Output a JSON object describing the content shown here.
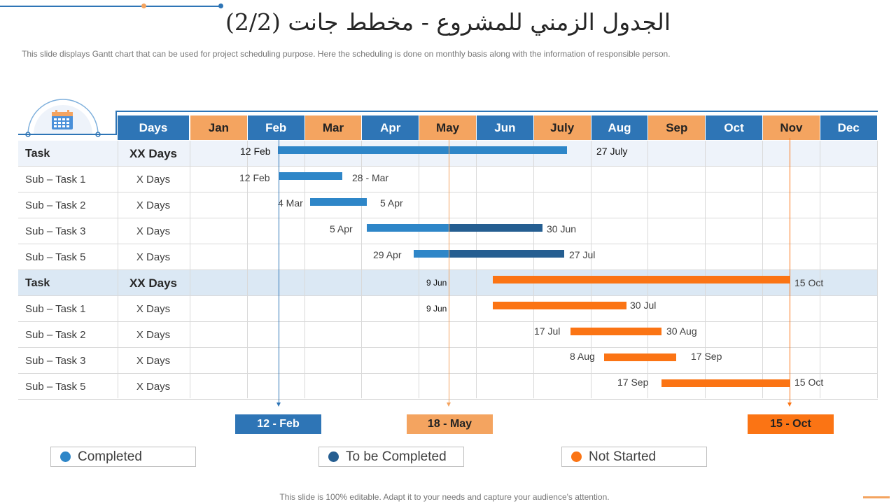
{
  "title": "الجدول الزمني للمشروع - مخطط جانت (2/2)",
  "subtitle": "This slide displays Gantt chart that can be used for project scheduling purpose. Here the scheduling is done on monthly basis along with the information of responsible person.",
  "footer": "This slide is 100% editable. Adapt it to your needs and capture your audience's attention.",
  "icon": "calendar-icon",
  "colors": {
    "header_blue": "#2e75b6",
    "header_orange": "#f4a460",
    "completed": "#2e86c8",
    "to_be_completed": "#255e91",
    "not_started": "#fb7414"
  },
  "header": {
    "days_label": "Days",
    "months": [
      "Jan",
      "Feb",
      "Mar",
      "Apr",
      "May",
      "Jun",
      "July",
      "Aug",
      "Sep",
      "Oct",
      "Nov",
      "Dec"
    ]
  },
  "rows": [
    {
      "name": "Task",
      "days": "XX Days",
      "bold": true,
      "start_label": "12 Feb",
      "end_label": "27 July"
    },
    {
      "name": "Sub – Task 1",
      "days": "X Days",
      "bold": false,
      "start_label": "12 Feb",
      "end_label": "28 - Mar"
    },
    {
      "name": "Sub – Task 2",
      "days": "X Days",
      "bold": false,
      "start_label": "4 Mar",
      "end_label": "5 Apr"
    },
    {
      "name": "Sub – Task 3",
      "days": "X Days",
      "bold": false,
      "start_label": "5 Apr",
      "end_label": "30 Jun"
    },
    {
      "name": "Sub – Task 5",
      "days": "X Days",
      "bold": false,
      "start_label": "29 Apr",
      "end_label": "27 Jul"
    },
    {
      "name": "Task",
      "days": "XX Days",
      "bold": true,
      "start_label": "9 Jun",
      "end_label": "15 Oct"
    },
    {
      "name": "Sub – Task 1",
      "days": "X Days",
      "bold": false,
      "start_label": "9 Jun",
      "end_label": "30 Jul"
    },
    {
      "name": "Sub – Task 2",
      "days": "X Days",
      "bold": false,
      "start_label": "17 Jul",
      "end_label": "30 Aug"
    },
    {
      "name": "Sub – Task 3",
      "days": "X Days",
      "bold": false,
      "start_label": "8 Aug",
      "end_label": "17 Sep"
    },
    {
      "name": "Sub – Task 5",
      "days": "X Days",
      "bold": false,
      "start_label": "17 Sep",
      "end_label": "15 Oct"
    }
  ],
  "markers": [
    {
      "label": "12 - Feb",
      "color": "blue"
    },
    {
      "label": "18 - May",
      "color": "orange"
    },
    {
      "label": "15 - Oct",
      "color": "deep-orange"
    }
  ],
  "legend": [
    {
      "label": "Completed",
      "color": "#2e86c8"
    },
    {
      "label": "To be Completed",
      "color": "#255e91"
    },
    {
      "label": "Not Started",
      "color": "#fb7414"
    }
  ]
}
